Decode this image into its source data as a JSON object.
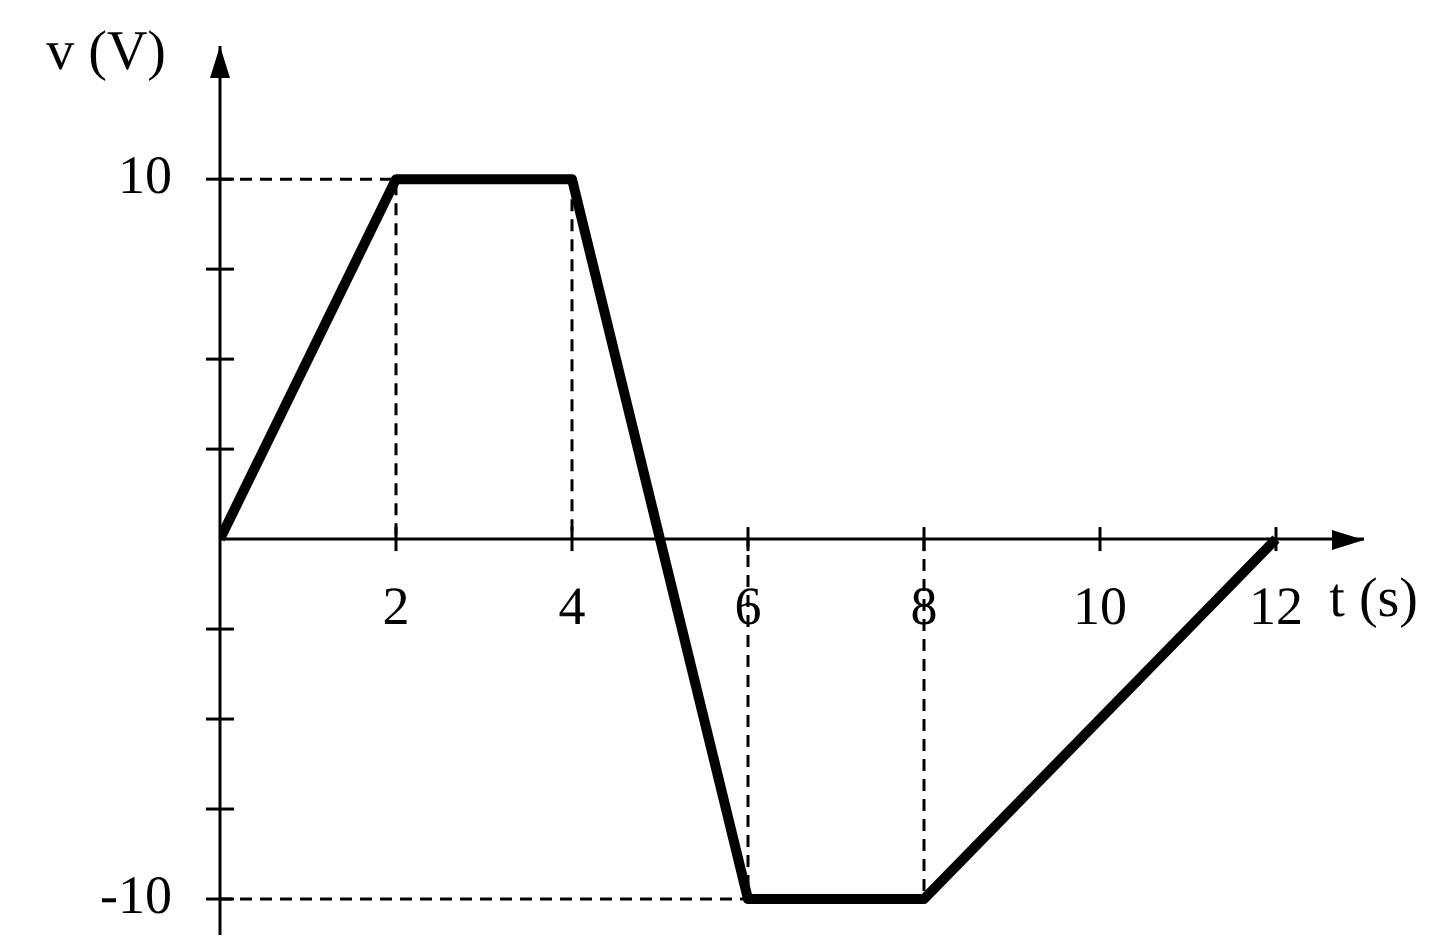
{
  "chart_data": {
    "type": "line",
    "xlabel": "t (s)",
    "ylabel": "v (V)",
    "xlim": [
      0,
      13
    ],
    "ylim": [
      -11,
      13.7
    ],
    "xticks": [
      2,
      4,
      6,
      8,
      10,
      12
    ],
    "yticks": [
      -10,
      {
        "value": -7.5,
        "label": null
      },
      {
        "value": -5,
        "label": null
      },
      {
        "value": -2.5,
        "label": null
      },
      {
        "value": 2.5,
        "label": null
      },
      {
        "value": 5,
        "label": null
      },
      {
        "value": 7.5,
        "label": null
      },
      10
    ],
    "series": [
      {
        "color": "#000000",
        "x": [
          0,
          2,
          4,
          6,
          8,
          12
        ],
        "values": [
          0,
          10,
          10,
          -10,
          -10,
          0
        ]
      },
      {
        "color": "#000000",
        "line_style": "dashed",
        "x": [
          0,
          2,
          2
        ],
        "values": [
          10,
          10,
          0
        ]
      },
      {
        "color": "#000000",
        "line_style": "dashed",
        "x": [
          4,
          4
        ],
        "values": [
          10,
          0
        ]
      },
      {
        "color": "#000000",
        "line_style": "dashed",
        "x": [
          0,
          6,
          6
        ],
        "values": [
          -10,
          -10,
          0
        ]
      },
      {
        "color": "#000000",
        "line_style": "dashed",
        "x": [
          8,
          8
        ],
        "values": [
          0,
          -10
        ]
      }
    ],
    "line_style": "solid",
    "marker": "none",
    "grid": false,
    "legend": false
  }
}
